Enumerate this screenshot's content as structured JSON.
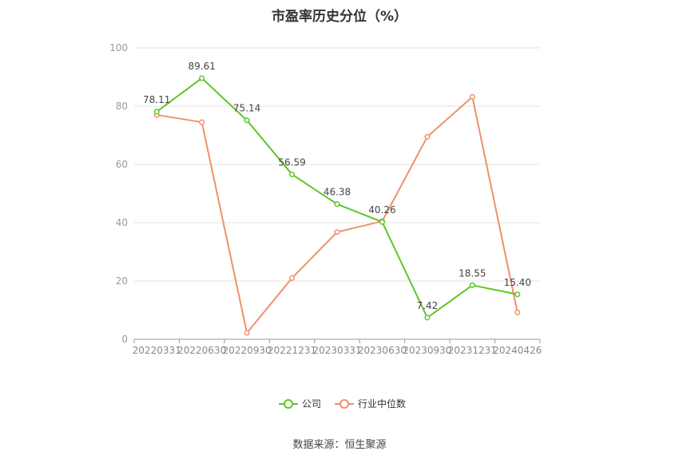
{
  "chart_data": {
    "type": "line",
    "title": "市盈率历史分位（%）",
    "categories": [
      "20220331",
      "20220630",
      "20220930",
      "20221231",
      "20230331",
      "20230630",
      "20230930",
      "20231231",
      "20240426"
    ],
    "series": [
      {
        "name": "公司",
        "color": "#5ec52a",
        "values": [
          78.11,
          89.61,
          75.14,
          56.59,
          46.38,
          40.26,
          7.42,
          18.55,
          15.4
        ],
        "labels": [
          "78.11",
          "89.61",
          "75.14",
          "56.59",
          "46.38",
          "40.26",
          "7.42",
          "18.55",
          "15.40"
        ]
      },
      {
        "name": "行业中位数",
        "color": "#f0906a",
        "values": [
          77.0,
          74.5,
          2.2,
          21.0,
          36.8,
          40.5,
          69.5,
          83.2,
          9.2
        ]
      }
    ],
    "ylim": [
      0,
      100
    ],
    "yticks": [
      0,
      20,
      40,
      60,
      80,
      100
    ],
    "grid": true,
    "legend_position": "bottom"
  },
  "source": "数据来源：恒生聚源"
}
